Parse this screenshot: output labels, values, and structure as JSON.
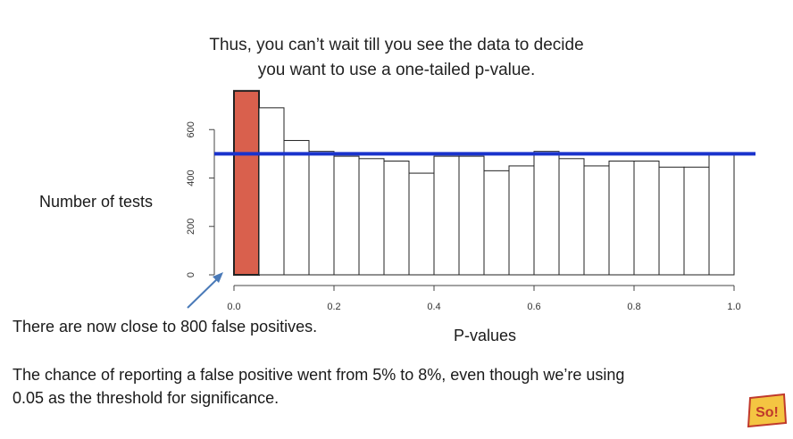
{
  "slide": {
    "title_line1": "Thus, you can’t wait till you see the data to decide",
    "title_line2": "you want to use a one-tailed p-value.",
    "arrow_caption": "There are now close to 800 false positives.",
    "note_line1": "The chance of reporting a false positive went from 5% to 8%, even though we’re using",
    "note_line2": "0.05 as the threshold for significance.",
    "logo_text": "So!",
    "colors": {
      "highlight_bar": "#d9604d",
      "reference_line": "#1a33cc",
      "bar_fill": "#ffffff",
      "bar_stroke": "#222222"
    }
  },
  "chart_data": {
    "type": "bar",
    "ylabel": "Number of tests",
    "xlabel": "P-values",
    "xlim": [
      0,
      1
    ],
    "ylim": [
      0,
      800
    ],
    "x_ticks": [
      "0.0",
      "0.2",
      "0.4",
      "0.6",
      "0.8",
      "1.0"
    ],
    "y_ticks": [
      "0",
      "200",
      "400",
      "600"
    ],
    "bin_width": 0.05,
    "bin_starts": [
      0.0,
      0.05,
      0.1,
      0.15,
      0.2,
      0.25,
      0.3,
      0.35,
      0.4,
      0.45,
      0.5,
      0.55,
      0.6,
      0.65,
      0.7,
      0.75,
      0.8,
      0.85,
      0.9,
      0.95
    ],
    "values": [
      760,
      690,
      555,
      510,
      490,
      480,
      470,
      420,
      490,
      490,
      430,
      450,
      510,
      480,
      450,
      470,
      470,
      445,
      445,
      500
    ],
    "highlighted_bin": 0,
    "reference_line": 500,
    "grid": false
  }
}
